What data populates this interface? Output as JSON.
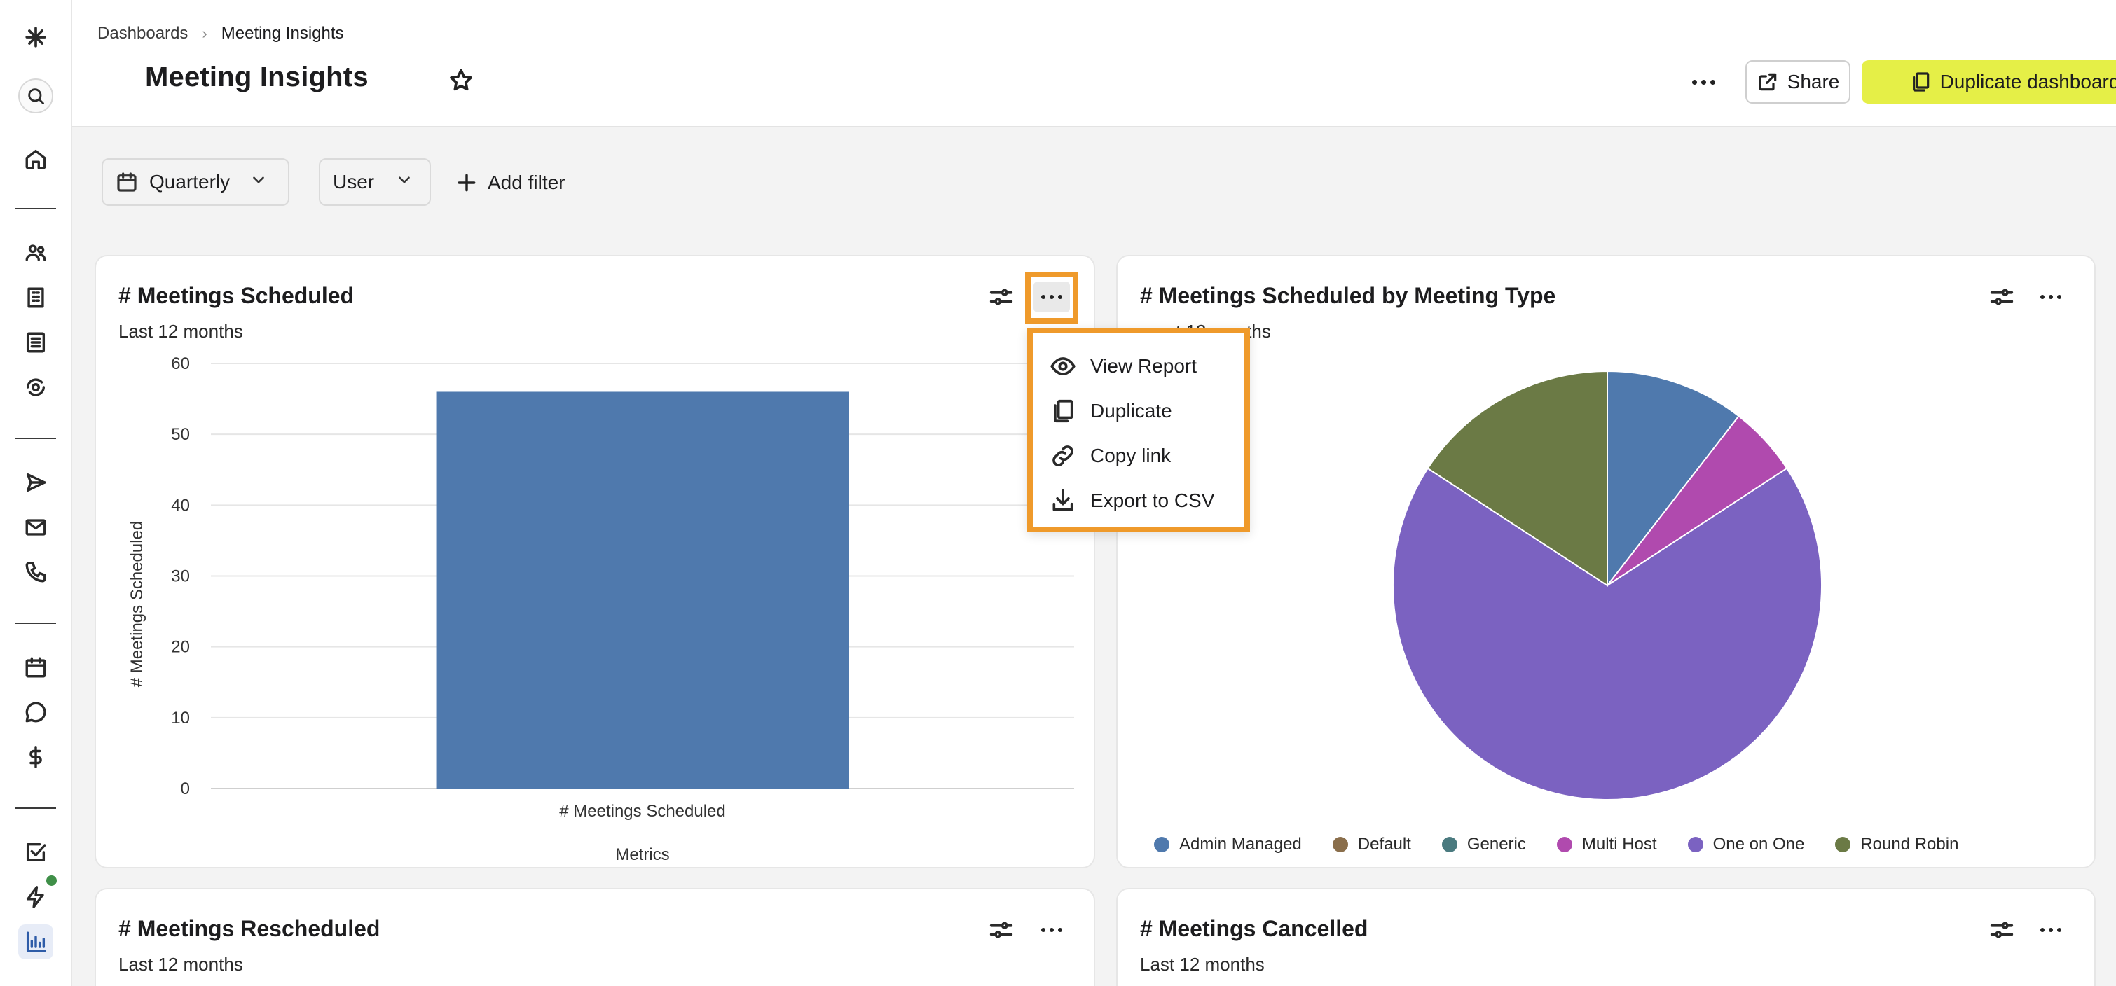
{
  "breadcrumb": {
    "root": "Dashboards",
    "separator": "›",
    "current": "Meeting Insights"
  },
  "page": {
    "title": "Meeting Insights"
  },
  "header_actions": {
    "share_label": "Share",
    "duplicate_label": "Duplicate dashboard"
  },
  "filters": {
    "period": {
      "label": "Quarterly",
      "icon": "calendar-icon"
    },
    "user": {
      "label": "User"
    },
    "add_label": "Add filter"
  },
  "cards": {
    "scheduled": {
      "title": "# Meetings Scheduled",
      "subtitle": "Last 12 months"
    },
    "by_type": {
      "title": "# Meetings Scheduled by Meeting Type",
      "subtitle_visible": "st 12 months"
    },
    "rescheduled": {
      "title": "# Meetings Rescheduled",
      "subtitle": "Last 12 months"
    },
    "cancelled": {
      "title": "# Meetings Cancelled",
      "subtitle": "Last 12 months"
    }
  },
  "context_menu": {
    "items": [
      {
        "label": "View Report",
        "icon": "eye-icon"
      },
      {
        "label": "Duplicate",
        "icon": "copy-icon"
      },
      {
        "label": "Copy link",
        "icon": "link-icon"
      },
      {
        "label": "Export to CSV",
        "icon": "download-icon"
      }
    ]
  },
  "colors": {
    "accent_button": "#e5ef47",
    "highlight": "#ef9a2b",
    "bar": "#4f79ad"
  },
  "chart_data": [
    {
      "type": "bar",
      "title": "# Meetings Scheduled",
      "subtitle": "Last 12 months",
      "categories": [
        "# Meetings Scheduled"
      ],
      "values": [
        56
      ],
      "xlabel": "Metrics",
      "ylabel": "# Meetings Scheduled",
      "ylim": [
        0,
        60
      ],
      "yticks": [
        0,
        10,
        20,
        30,
        40,
        50,
        60
      ],
      "grid": true,
      "color": "#4f79ad"
    },
    {
      "type": "pie",
      "title": "# Meetings Scheduled by Meeting Type",
      "legend_position": "bottom",
      "slices": [
        {
          "name": "Admin Managed",
          "value": 10.5,
          "color": "#4f79ad"
        },
        {
          "name": "Default",
          "value": 0,
          "color": "#8a6e4b"
        },
        {
          "name": "Generic",
          "value": 0,
          "color": "#4a7a7f"
        },
        {
          "name": "Multi Host",
          "value": 5.3,
          "color": "#b04aae"
        },
        {
          "name": "One on One",
          "value": 68.4,
          "color": "#7b62c1"
        },
        {
          "name": "Round Robin",
          "value": 15.8,
          "color": "#6b7a45"
        }
      ]
    }
  ]
}
